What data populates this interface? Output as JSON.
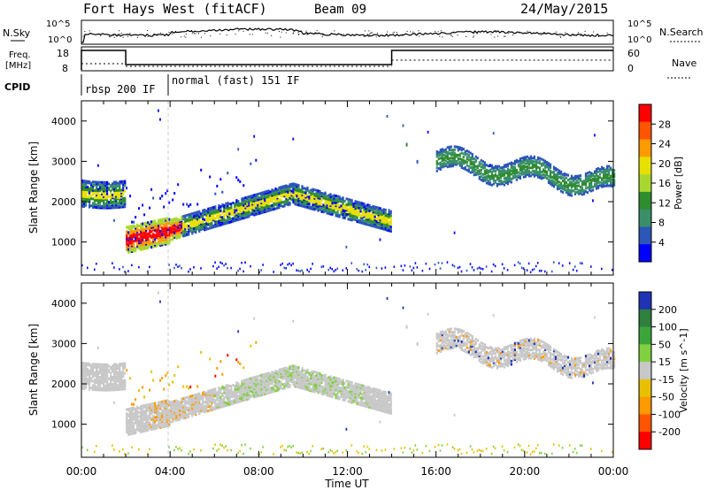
{
  "header": {
    "station": "Fort Hays West (fitACF)",
    "beam": "Beam 09",
    "date": "24/May/2015"
  },
  "top_panels": {
    "nsky_label": "N.Sky",
    "nsearch_label": "N.Search",
    "nsky_ticks": [
      "10^5",
      "10^0"
    ],
    "nsearch_ticks": [
      "10^5",
      "10^0"
    ],
    "freq_label": "Freq.",
    "freq_unit": "[MHz]",
    "freq_ticks": [
      "18",
      "8"
    ],
    "nave_label": "Nave",
    "nave_ticks": [
      "60",
      "0"
    ],
    "cpid_label": "CPID",
    "cpid_segments": [
      {
        "label": "rbsp 200 IF",
        "start_hour": 0,
        "end_hour": 4
      },
      {
        "label": "normal (fast) 151 IF",
        "start_hour": 4,
        "end_hour": 24
      }
    ]
  },
  "chart_data": [
    {
      "type": "heatmap",
      "title": "Power",
      "xlabel": "",
      "ylabel": "Slant Range [km]",
      "xlim": [
        0,
        24
      ],
      "ylim": [
        180,
        4500
      ],
      "yticks": [
        "1000",
        "2000",
        "3000",
        "4000"
      ],
      "colorbar_label": "Power [dB]",
      "colorbar_ticks": [
        "4",
        "8",
        "12",
        "16",
        "20",
        "24",
        "28"
      ],
      "colors": [
        "#0000ff",
        "#2c56b8",
        "#3a8f6a",
        "#2f8c2f",
        "#a8d830",
        "#e8e000",
        "#ff9900",
        "#ff5500",
        "#ff0000"
      ]
    },
    {
      "type": "heatmap",
      "title": "Velocity",
      "xlabel": "Time UT",
      "ylabel": "Slant Range [km]",
      "xlim": [
        0,
        24
      ],
      "ylim": [
        180,
        4500
      ],
      "yticks": [
        "1000",
        "2000",
        "3000",
        "4000"
      ],
      "xticks": [
        "00:00",
        "04:00",
        "08:00",
        "12:00",
        "16:00",
        "20:00",
        "00:00"
      ],
      "colorbar_label": "Velocity [m s^-1]",
      "colorbar_ticks": [
        "200",
        "100",
        "50",
        "15",
        "-15",
        "-50",
        "-100",
        "-200"
      ],
      "colors": [
        "#1f33b4",
        "#2f7f3f",
        "#3aa63a",
        "#80d040",
        "#c8c8c8",
        "#e8c000",
        "#ff9900",
        "#ff5500",
        "#ff0000"
      ]
    }
  ]
}
